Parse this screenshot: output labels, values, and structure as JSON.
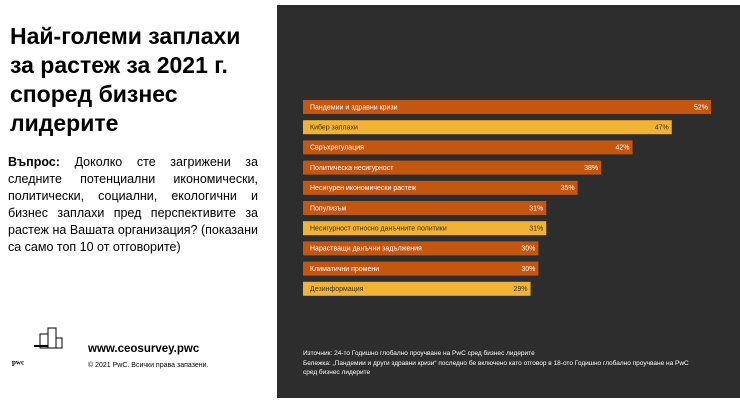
{
  "chart_data": {
    "type": "bar",
    "orientation": "horizontal",
    "title": "Най-големи заплахи за растеж за 2021 г. според бизнес лидерите",
    "categories": [
      "Пандемии и здравни кризи",
      "Кибер заплахи",
      "Свръхрегулация",
      "Политическа несигурност",
      "Несигурен икономически растеж",
      "Популизъм",
      "Несигурност относно данъчните политики",
      "Нарастващи данъчни задължения",
      "Климатични промени",
      "Дезинформация"
    ],
    "values": [
      52,
      47,
      42,
      38,
      35,
      31,
      31,
      30,
      30,
      29
    ],
    "value_labels": [
      "52%",
      "47%",
      "42%",
      "38%",
      "35%",
      "31%",
      "31%",
      "30%",
      "30%",
      "29%"
    ],
    "colors": [
      "#c4560f",
      "#f2b233",
      "#c4560f",
      "#c4560f",
      "#c4560f",
      "#c4560f",
      "#f2b233",
      "#c4560f",
      "#c4560f",
      "#f2b233"
    ]
  },
  "question": {
    "label": "Въпрос:",
    "text": "Доколко сте загрижени за следните потенциални икономически, политически, социални, екологични и бизнес заплахи пред перспективите за растеж на Вашата организация? (показани са само топ 10 от отговорите)"
  },
  "footer": {
    "logo": "pwc",
    "url": "www.ceosurvey.pwc",
    "copyright": "© 2021 PwC. Всички права запазени.",
    "source": "Източник: 24-то Годишно глобално проучване на PwC сред бизнес лидерите",
    "note": "Бележка: „Пандемии и други здравни кризи“ последно бе включено като отговор в 18-ото Годишно глобално проучване на PwC сред бизнес лидерите"
  }
}
